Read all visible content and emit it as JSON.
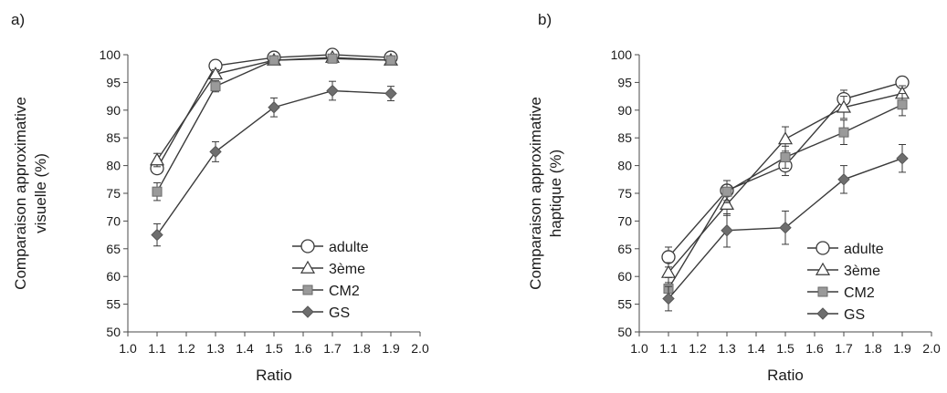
{
  "chart_data": [
    {
      "panel_label": "a)",
      "type": "line",
      "xlabel": "Ratio",
      "ylabel_lines": [
        "Comparaison approximative",
        "visuelle (%)"
      ],
      "xlim": [
        1.0,
        2.0
      ],
      "ylim": [
        50,
        100
      ],
      "xticks": [
        1.0,
        1.1,
        1.2,
        1.3,
        1.4,
        1.5,
        1.6,
        1.7,
        1.8,
        1.9,
        2.0
      ],
      "xtick_labels": [
        "1.0",
        "1.1",
        "1.2",
        "1.3",
        "1.4",
        "1.5",
        "1.6",
        "1.7",
        "1.8",
        "1.9",
        "2.0"
      ],
      "yticks": [
        50,
        55,
        60,
        65,
        70,
        75,
        80,
        85,
        90,
        95,
        100
      ],
      "ytick_labels": [
        "50",
        "55",
        "60",
        "65",
        "70",
        "75",
        "80",
        "85",
        "90",
        "95",
        "100"
      ],
      "grid": false,
      "legend_position": "bottom-right",
      "x": [
        1.1,
        1.3,
        1.5,
        1.7,
        1.9
      ],
      "series": [
        {
          "name": "adulte",
          "marker": "circle",
          "values": [
            79.5,
            98.0,
            99.5,
            100.0,
            99.5
          ],
          "errors": [
            0.8,
            0.6,
            0.4,
            0.4,
            0.4
          ]
        },
        {
          "name": "3ème",
          "marker": "triangle",
          "values": [
            81.0,
            96.5,
            99.0,
            99.5,
            99.0
          ],
          "errors": [
            1.2,
            0.8,
            0.5,
            0.4,
            0.4
          ]
        },
        {
          "name": "CM2",
          "marker": "square",
          "values": [
            75.3,
            94.3,
            99.0,
            99.3,
            99.0
          ],
          "errors": [
            1.6,
            1.0,
            0.5,
            0.4,
            0.5
          ]
        },
        {
          "name": "GS",
          "marker": "diamond",
          "values": [
            67.5,
            82.5,
            90.5,
            93.5,
            93.0
          ],
          "errors": [
            2.0,
            1.8,
            1.7,
            1.7,
            1.3
          ]
        }
      ]
    },
    {
      "panel_label": "b)",
      "type": "line",
      "xlabel": "Ratio",
      "ylabel_lines": [
        "Comparaison approximative",
        "haptique (%)"
      ],
      "xlim": [
        1.0,
        2.0
      ],
      "ylim": [
        50,
        100
      ],
      "xticks": [
        1.0,
        1.1,
        1.2,
        1.3,
        1.4,
        1.5,
        1.6,
        1.7,
        1.8,
        1.9,
        2.0
      ],
      "xtick_labels": [
        "1.0",
        "1.1",
        "1.2",
        "1.3",
        "1.4",
        "1.5",
        "1.6",
        "1.7",
        "1.8",
        "1.9",
        "2.0"
      ],
      "yticks": [
        50,
        55,
        60,
        65,
        70,
        75,
        80,
        85,
        90,
        95,
        100
      ],
      "ytick_labels": [
        "50",
        "55",
        "60",
        "65",
        "70",
        "75",
        "80",
        "85",
        "90",
        "95",
        "100"
      ],
      "grid": false,
      "legend_position": "bottom-right",
      "x": [
        1.1,
        1.3,
        1.5,
        1.7,
        1.9
      ],
      "series": [
        {
          "name": "adulte",
          "marker": "circle",
          "values": [
            63.5,
            75.5,
            80.0,
            92.0,
            95.0
          ],
          "errors": [
            1.8,
            1.8,
            1.8,
            1.6,
            1.0
          ]
        },
        {
          "name": "3ème",
          "marker": "triangle",
          "values": [
            60.7,
            73.0,
            84.8,
            90.5,
            93.0
          ],
          "errors": [
            1.8,
            2.0,
            2.2,
            2.0,
            1.4
          ]
        },
        {
          "name": "CM2",
          "marker": "square",
          "values": [
            57.8,
            75.3,
            81.5,
            86.0,
            91.0
          ],
          "errors": [
            2.0,
            2.0,
            2.0,
            2.2,
            2.0
          ]
        },
        {
          "name": "GS",
          "marker": "diamond",
          "values": [
            56.0,
            68.3,
            68.8,
            77.5,
            81.3
          ],
          "errors": [
            2.2,
            3.0,
            3.0,
            2.5,
            2.5
          ]
        }
      ]
    }
  ],
  "style": {
    "axis_color": "#4a4a4a",
    "line_color": "#3a3a3a",
    "circle_fill": "#ffffff",
    "triangle_fill": "#ffffff",
    "square_fill": "#9a9a9a",
    "diamond_fill": "#6e6e6e"
  }
}
